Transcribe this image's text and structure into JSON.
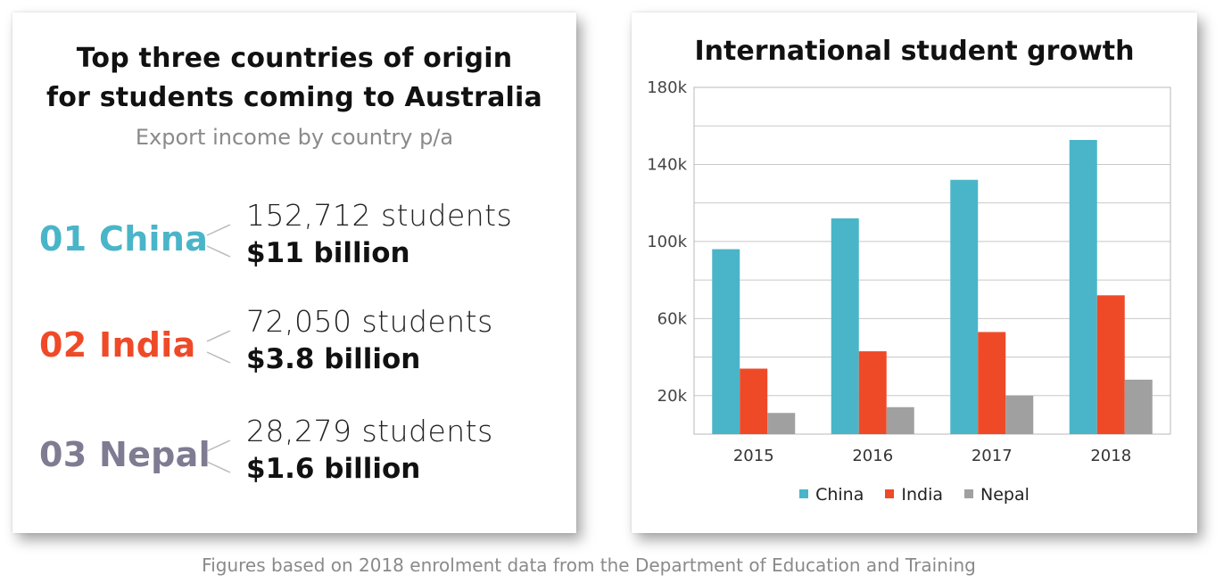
{
  "left_panel": {
    "title_line1": "Top three countries of origin",
    "title_line2": "for students coming to Australia",
    "subtitle": "Export income by country p/a",
    "countries": [
      {
        "rank_name": "01 China",
        "students": "152,712 students",
        "income": "$11 billion",
        "color": "#4ab5c8"
      },
      {
        "rank_name": "02 India",
        "students": "72,050 students",
        "income": "$3.8 billion",
        "color": "#ef4a28"
      },
      {
        "rank_name": "03 Nepal",
        "students": "28,279 students",
        "income": "$1.6 billion",
        "color": "#7e7b92"
      }
    ]
  },
  "footer": "Figures based on 2018 enrolment data from the Department of Education and Training",
  "chart_data": {
    "type": "bar",
    "title": "International student growth",
    "categories": [
      "2015",
      "2016",
      "2017",
      "2018"
    ],
    "series": [
      {
        "name": "China",
        "color": "#4ab5c8",
        "values": [
          96000,
          112000,
          132000,
          152712
        ]
      },
      {
        "name": "India",
        "color": "#ef4a28",
        "values": [
          34000,
          43000,
          53000,
          72050
        ]
      },
      {
        "name": "Nepal",
        "color": "#a0a0a0",
        "values": [
          11000,
          14000,
          20000,
          28279
        ]
      }
    ],
    "ylim": [
      0,
      180000
    ],
    "yticks": [
      20000,
      60000,
      100000,
      140000,
      180000
    ],
    "ytick_labels": [
      "20k",
      "60k",
      "100k",
      "140k",
      "180k"
    ],
    "gridlines": [
      20000,
      40000,
      60000,
      80000,
      100000,
      120000,
      140000,
      160000,
      180000
    ],
    "xlabel": "",
    "ylabel": "",
    "legend_position": "bottom"
  }
}
